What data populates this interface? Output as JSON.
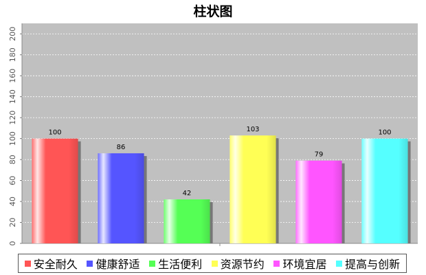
{
  "chart_data": {
    "type": "bar",
    "title": "柱状图",
    "categories": [
      "安全耐久",
      "健康舒适",
      "生活便利",
      "资源节约",
      "环境宜居",
      "提高与创新"
    ],
    "values": [
      100,
      86,
      42,
      103,
      79,
      100
    ],
    "colors": [
      "#ff5555",
      "#5555ff",
      "#55ff55",
      "#ffff55",
      "#ff55ff",
      "#55ffff"
    ],
    "ylim": [
      0,
      210
    ],
    "yticks": [
      0,
      20,
      40,
      60,
      80,
      100,
      120,
      140,
      160,
      180,
      200
    ],
    "grid": true,
    "legend_position": "bottom",
    "plot_background": "#c0c0c0",
    "xlabel": "",
    "ylabel": ""
  }
}
